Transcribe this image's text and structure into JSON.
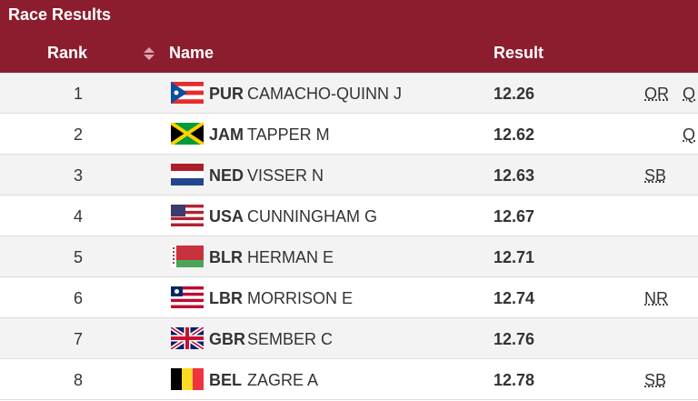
{
  "header": {
    "title": "Race Results"
  },
  "table": {
    "columns": [
      "Rank",
      "Name",
      "Result"
    ],
    "rows": [
      {
        "rank": 1,
        "noc": "PUR",
        "name": "CAMACHO-QUINN J",
        "result": 12.26,
        "record": "OR",
        "qualified": "Q"
      },
      {
        "rank": 2,
        "noc": "JAM",
        "name": "TAPPER M",
        "result": 12.62,
        "qualified": "Q"
      },
      {
        "rank": 3,
        "noc": "NED",
        "name": "VISSER N",
        "result": 12.63,
        "record": "SB"
      },
      {
        "rank": 4,
        "noc": "USA",
        "name": "CUNNINGHAM G",
        "result": 12.67
      },
      {
        "rank": 5,
        "noc": "BLR",
        "name": "HERMAN E",
        "result": 12.71
      },
      {
        "rank": 6,
        "noc": "LBR",
        "name": "MORRISON E",
        "result": 12.74,
        "record": "NR"
      },
      {
        "rank": 7,
        "noc": "GBR",
        "name": "SEMBER C",
        "result": 12.76
      },
      {
        "rank": 8,
        "noc": "BEL",
        "name": "ZAGRE A",
        "result": 12.78,
        "record": "SB"
      }
    ]
  }
}
